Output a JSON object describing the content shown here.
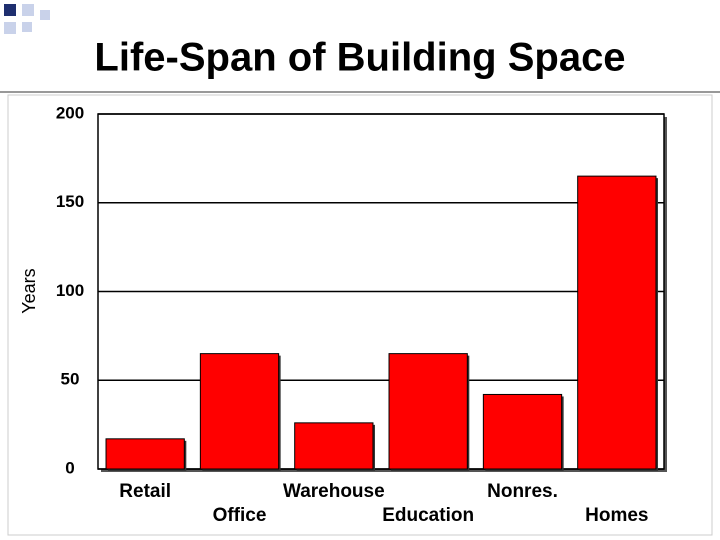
{
  "chart_data": {
    "type": "bar",
    "title": "Life-Span of Building Space",
    "y_label": "Years",
    "categories": [
      "Retail",
      "Office",
      "Warehouse",
      "Education",
      "Nonres.",
      "Homes"
    ],
    "values": [
      17,
      65,
      26,
      65,
      42,
      165
    ],
    "color": "#ff0000",
    "ylim": [
      0,
      200
    ],
    "yticks": [
      0,
      50,
      100,
      150,
      200
    ],
    "grid": true
  }
}
